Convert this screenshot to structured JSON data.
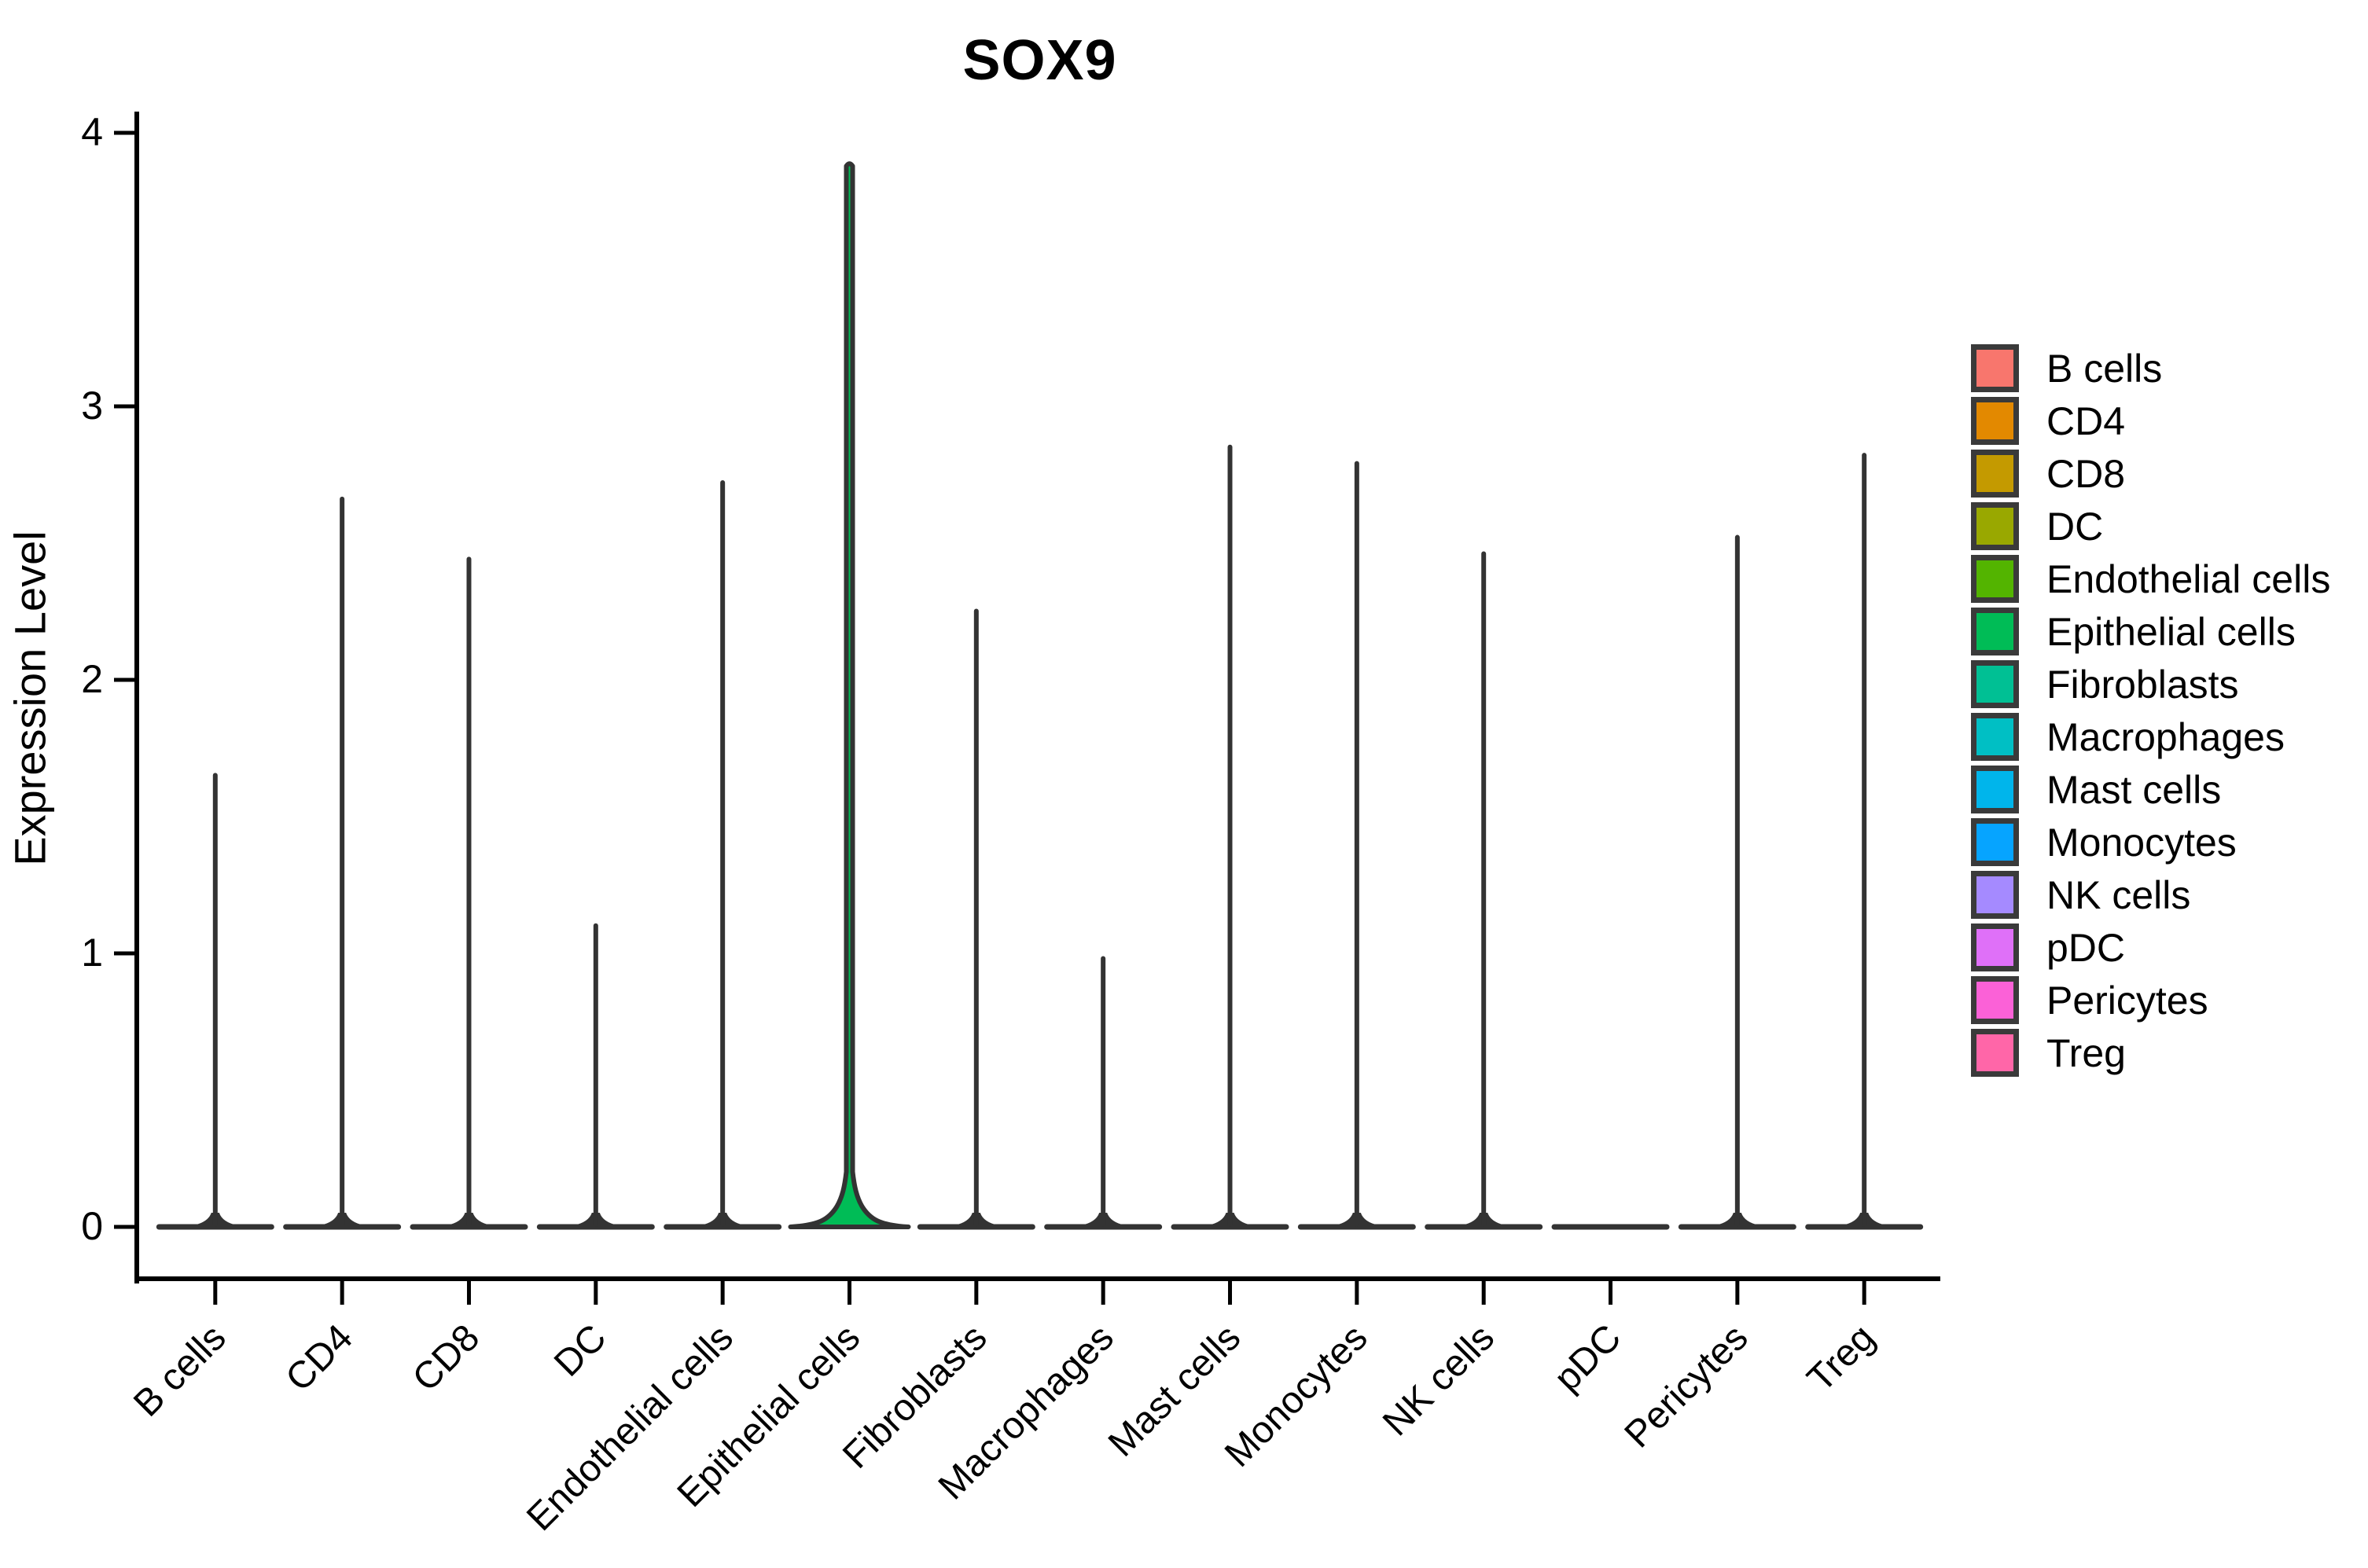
{
  "title": "SOX9",
  "y_axis": {
    "label": "Expression Level",
    "ticks": [
      "0",
      "1",
      "2",
      "3",
      "4"
    ]
  },
  "chart_data": {
    "type": "violin",
    "title": "SOX9",
    "xlabel": "",
    "ylabel": "Expression Level",
    "ylim": [
      -0.2,
      4.08
    ],
    "yticks": [
      0,
      1,
      2,
      3,
      4
    ],
    "grid": false,
    "legend_position": "right",
    "categories": [
      "B cells",
      "CD4",
      "CD8",
      "DC",
      "Endothelial cells",
      "Epithelial cells",
      "Fibroblasts",
      "Macrophages",
      "Mast cells",
      "Monocytes",
      "NK cells",
      "pDC",
      "Pericytes",
      "Treg"
    ],
    "series": [
      {
        "name": "max_expression_level",
        "description": "top of each violin spike (expression level units)",
        "values": [
          1.66,
          2.67,
          2.45,
          1.11,
          2.73,
          3.89,
          2.26,
          0.99,
          2.86,
          2.8,
          2.47,
          0,
          2.53,
          2.83
        ]
      },
      {
        "name": "visible_density_bulge_at_zero",
        "description": "only Epithelial cells shows a wide filled density bulge near 0; all others collapse to a flat line at 0",
        "values": [
          false,
          false,
          false,
          false,
          false,
          true,
          false,
          false,
          false,
          false,
          false,
          false,
          false,
          false
        ]
      }
    ],
    "colors": [
      "#F8766D",
      "#E38900",
      "#C49A00",
      "#99A800",
      "#53B400",
      "#00BC56",
      "#00C094",
      "#00BFC4",
      "#00B5EB",
      "#06A4FF",
      "#A58AFF",
      "#DF70F8",
      "#FB61D7",
      "#FF66A8"
    ],
    "violin_outline_color": "#333333",
    "axis_color": "#000000"
  },
  "legend": {
    "items": [
      {
        "label": "B cells",
        "color": "#F8766D"
      },
      {
        "label": "CD4",
        "color": "#E38900"
      },
      {
        "label": "CD8",
        "color": "#C49A00"
      },
      {
        "label": "DC",
        "color": "#99A800"
      },
      {
        "label": "Endothelial cells",
        "color": "#53B400"
      },
      {
        "label": "Epithelial cells",
        "color": "#00BC56"
      },
      {
        "label": "Fibroblasts",
        "color": "#00C094"
      },
      {
        "label": "Macrophages",
        "color": "#00BFC4"
      },
      {
        "label": "Mast cells",
        "color": "#00B5EB"
      },
      {
        "label": "Monocytes",
        "color": "#06A4FF"
      },
      {
        "label": "NK cells",
        "color": "#A58AFF"
      },
      {
        "label": "pDC",
        "color": "#DF70F8"
      },
      {
        "label": "Pericytes",
        "color": "#FB61D7"
      },
      {
        "label": "Treg",
        "color": "#FF66A8"
      }
    ]
  }
}
